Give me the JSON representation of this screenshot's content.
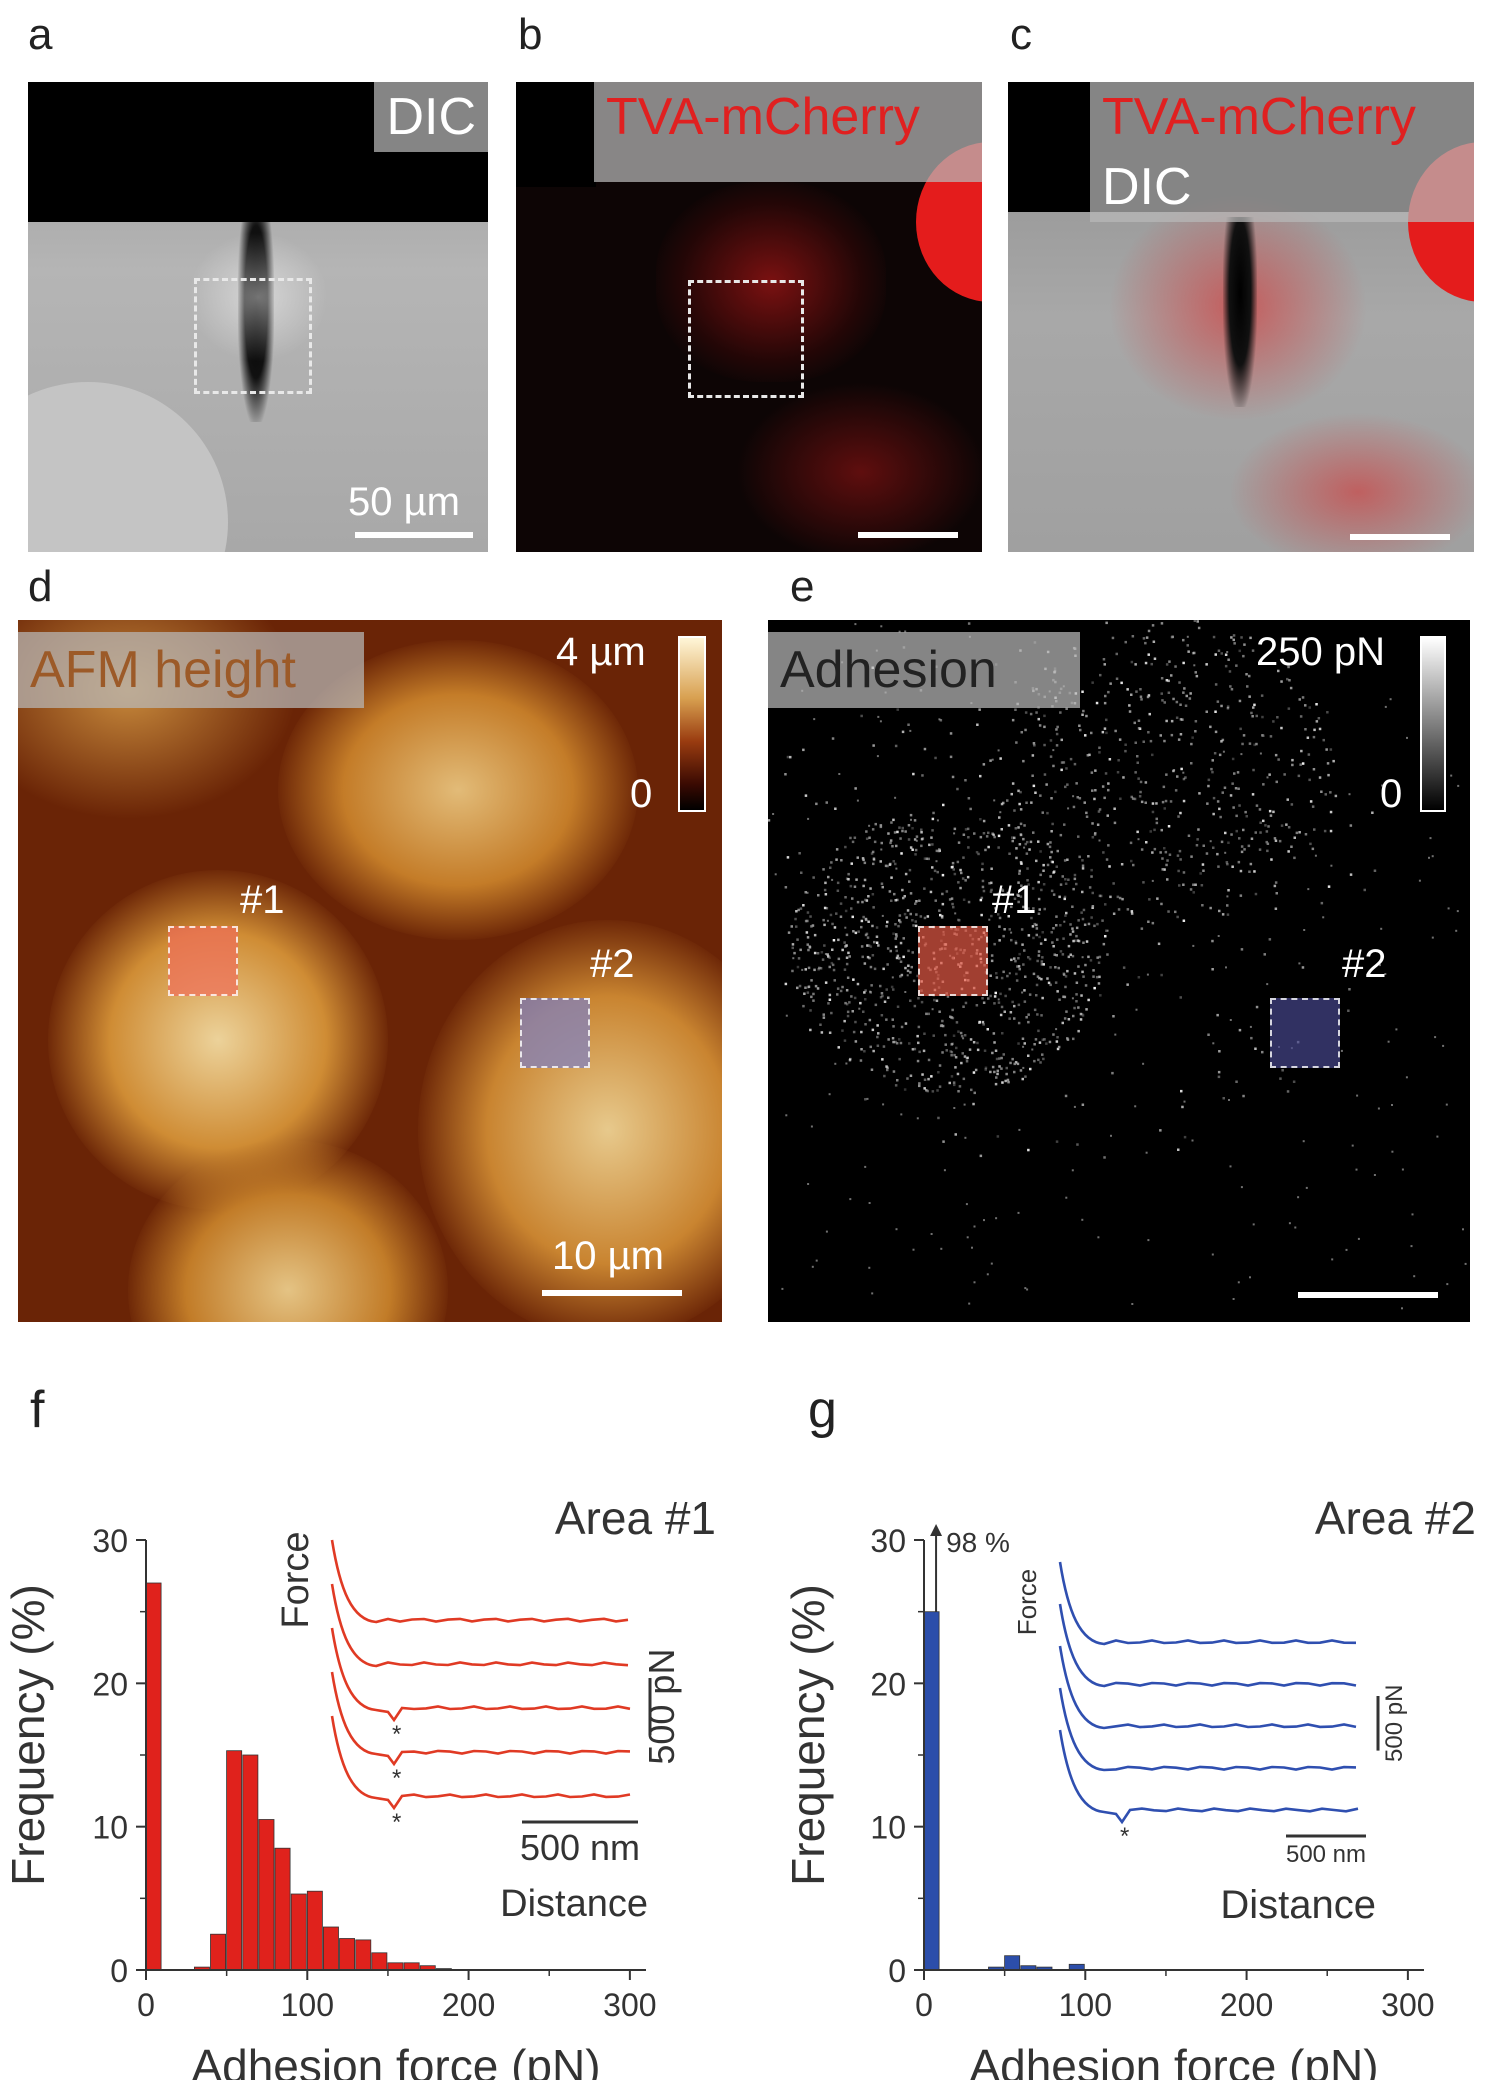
{
  "panels": {
    "a": {
      "letter": "a",
      "tag": "DIC",
      "scalebar": "50 µm"
    },
    "b": {
      "letter": "b",
      "tag": "TVA-mCherry"
    },
    "c": {
      "letter": "c",
      "tag_top": "TVA-mCherry",
      "tag_bottom": "DIC"
    },
    "d": {
      "letter": "d",
      "tag": "AFM height",
      "cbar_max": "4 µm",
      "cbar_min": "0",
      "roi1": "#1",
      "roi2": "#2",
      "scalebar": "10 µm"
    },
    "e": {
      "letter": "e",
      "tag": "Adhesion",
      "cbar_max": "250 pN",
      "cbar_min": "0",
      "roi1": "#1",
      "roi2": "#2"
    },
    "f": {
      "letter": "f"
    },
    "g": {
      "letter": "g"
    }
  },
  "colors": {
    "red_bar": "#e0221c",
    "blue_bar": "#2c4eaa",
    "red_curve": "#e03a24",
    "blue_curve": "#2f4fb0",
    "tvamcherry": "#e02020"
  },
  "chart_data": [
    {
      "type": "bar",
      "panel": "f",
      "title": "Area #1",
      "xlabel": "Adhesion force (pN)",
      "ylabel": "Frequency (%)",
      "xlim": [
        0,
        310
      ],
      "ylim": [
        0,
        30
      ],
      "xticks": [
        "0",
        "100",
        "200",
        "300"
      ],
      "yticks": [
        "0",
        "10",
        "20",
        "30"
      ],
      "bin_width": 10,
      "x": [
        5,
        35,
        45,
        55,
        65,
        75,
        85,
        95,
        105,
        115,
        125,
        135,
        145,
        155,
        165,
        175,
        185
      ],
      "values": [
        27,
        0.2,
        2.5,
        15.3,
        15,
        10.5,
        8.5,
        5.3,
        5.5,
        3,
        2.2,
        2.1,
        1.2,
        0.5,
        0.5,
        0.3,
        0.1
      ],
      "inset": {
        "ylabel": "Force",
        "xlabel": "Distance",
        "scale_x": "500 nm",
        "scale_y": "500 pN",
        "marker": "*",
        "traces": 5
      }
    },
    {
      "type": "bar",
      "panel": "g",
      "title": "Area #2",
      "xlabel": "Adhesion force (pN)",
      "ylabel": "Frequency (%)",
      "xlim": [
        0,
        310
      ],
      "ylim": [
        0,
        30
      ],
      "xticks": [
        "0",
        "100",
        "200",
        "300"
      ],
      "yticks": [
        "0",
        "10",
        "20",
        "30"
      ],
      "bin_width": 10,
      "x": [
        5,
        45,
        55,
        65,
        75,
        95
      ],
      "values": [
        25,
        0.2,
        1.0,
        0.3,
        0.2,
        0.4
      ],
      "break_annotation": "98 %",
      "inset": {
        "ylabel": "Force",
        "xlabel": "Distance",
        "scale_x": "500 nm",
        "scale_y": "500 pN",
        "marker": "*",
        "traces": 5
      }
    }
  ]
}
